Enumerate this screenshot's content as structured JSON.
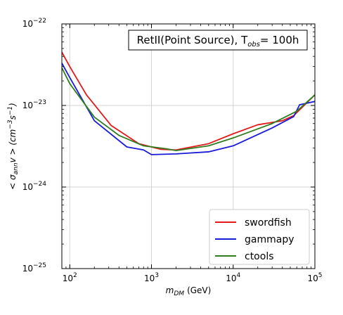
{
  "chart_data": {
    "type": "line",
    "title": "RetII(Point Source), T",
    "title_sub": "obs",
    "title_suffix": "= 100h",
    "xlabel_main": "m",
    "xlabel_sub": "DM",
    "xlabel_unit": "(GeV)",
    "ylabel_prefix": "< σ",
    "ylabel_sub": "ann",
    "ylabel_mid": "v > (cm",
    "ylabel_sup1": "−3",
    "ylabel_mid2": "s",
    "ylabel_sup2": "−1",
    "ylabel_suffix": ")",
    "xscale": "log",
    "yscale": "log",
    "xlim": [
      80,
      100000
    ],
    "ylim": [
      1e-25,
      1e-22
    ],
    "grid": true,
    "legend_position": "bottom-right",
    "x_ticks": [
      {
        "value": 100,
        "base": "10",
        "exp": "2"
      },
      {
        "value": 1000,
        "base": "10",
        "exp": "3"
      },
      {
        "value": 10000,
        "base": "10",
        "exp": "4"
      },
      {
        "value": 100000,
        "base": "10",
        "exp": "5"
      }
    ],
    "y_ticks": [
      {
        "value": 1e-25,
        "base": "10",
        "exp": "−25"
      },
      {
        "value": 1e-24,
        "base": "10",
        "exp": "−24"
      },
      {
        "value": 1e-23,
        "base": "10",
        "exp": "−23"
      },
      {
        "value": 1e-22,
        "base": "10",
        "exp": "−22"
      }
    ],
    "series": [
      {
        "name": "swordfish",
        "color": "#e31a1c",
        "points": [
          [
            80,
            4.5e-23
          ],
          [
            100,
            3e-23
          ],
          [
            160,
            1.35e-23
          ],
          [
            320,
            5.7e-24
          ],
          [
            700,
            3.4e-24
          ],
          [
            1300,
            2.9e-24
          ],
          [
            2000,
            2.85e-24
          ],
          [
            5000,
            3.4e-24
          ],
          [
            10000,
            4.5e-24
          ],
          [
            20000,
            5.8e-24
          ],
          [
            40000,
            6.5e-24
          ],
          [
            55000,
            7.5e-24
          ],
          [
            70000,
            9.5e-24
          ],
          [
            100000,
            1.35e-23
          ]
        ]
      },
      {
        "name": "gammapy",
        "color": "#1a1adb",
        "points": [
          [
            80,
            3.3e-23
          ],
          [
            100,
            2.2e-23
          ],
          [
            200,
            6.5e-24
          ],
          [
            500,
            3.1e-24
          ],
          [
            800,
            2.85e-24
          ],
          [
            1000,
            2.5e-24
          ],
          [
            2000,
            2.55e-24
          ],
          [
            5000,
            2.7e-24
          ],
          [
            10000,
            3.2e-24
          ],
          [
            30000,
            5.3e-24
          ],
          [
            55000,
            7.3e-24
          ],
          [
            65000,
            1.02e-23
          ],
          [
            100000,
            1.12e-23
          ]
        ]
      },
      {
        "name": "ctools",
        "color": "#2e7d1f",
        "points": [
          [
            80,
            2.9e-23
          ],
          [
            100,
            1.85e-23
          ],
          [
            200,
            7.2e-24
          ],
          [
            400,
            4.3e-24
          ],
          [
            800,
            3.2e-24
          ],
          [
            1500,
            2.95e-24
          ],
          [
            2000,
            2.8e-24
          ],
          [
            5000,
            3.2e-24
          ],
          [
            10000,
            4e-24
          ],
          [
            30000,
            6e-24
          ],
          [
            60000,
            8.5e-24
          ],
          [
            100000,
            1.35e-23
          ]
        ]
      }
    ]
  }
}
